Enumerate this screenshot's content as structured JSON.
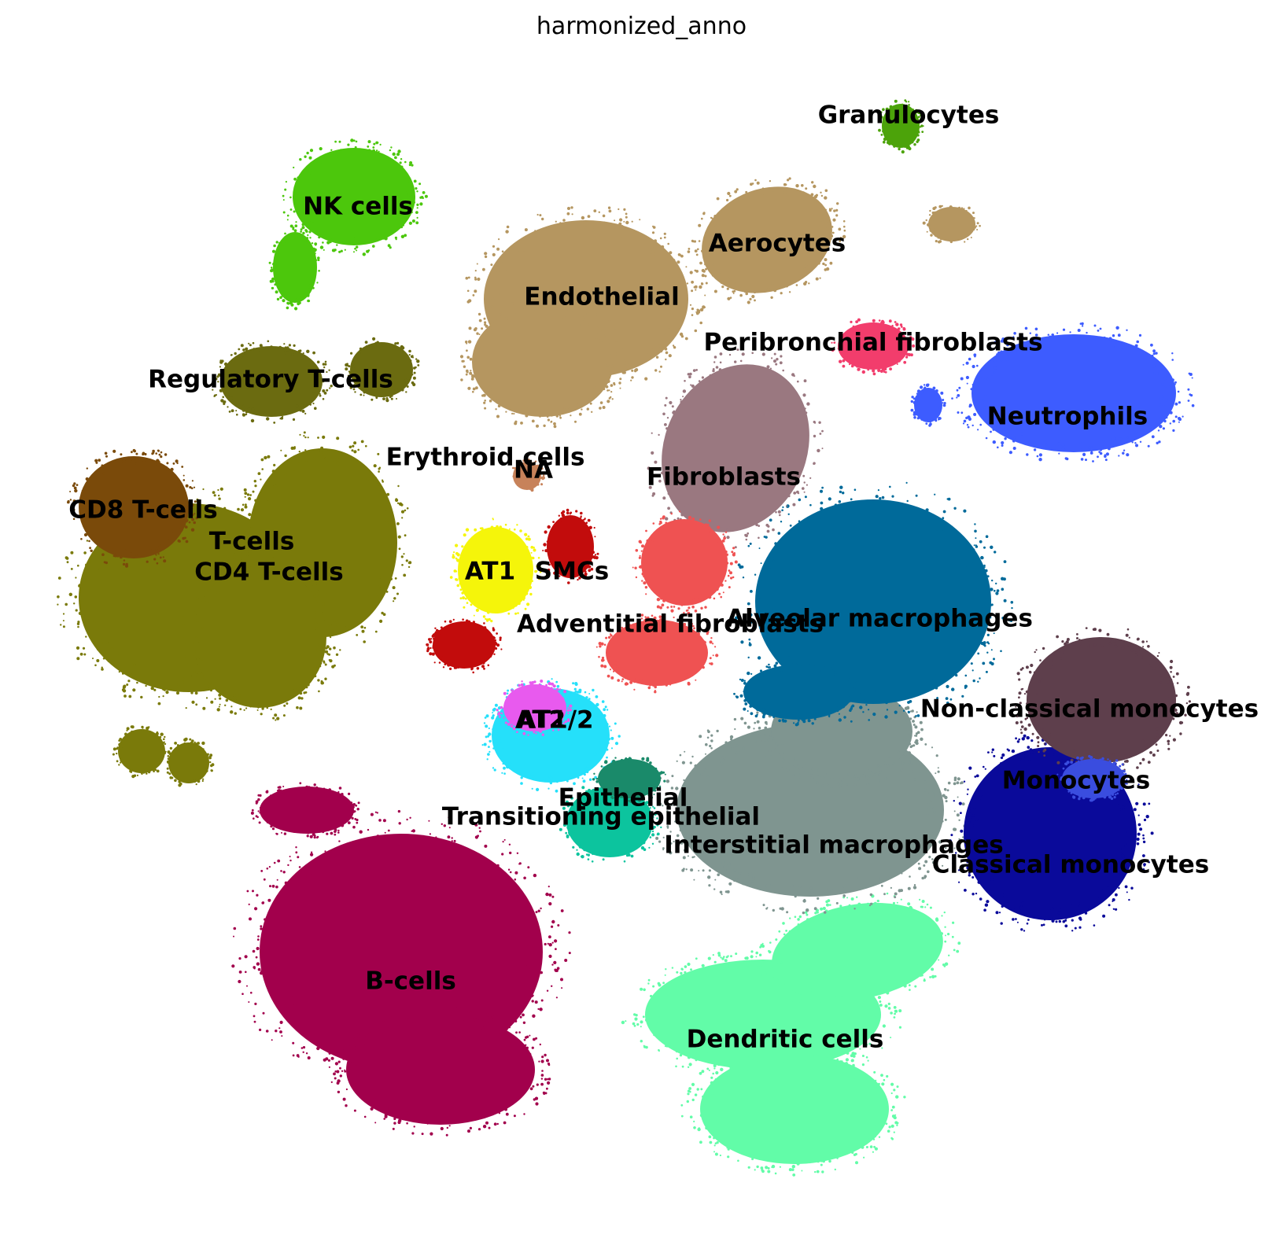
{
  "chart_data": {
    "type": "scatter",
    "title": "harmonized_anno",
    "xlabel": "",
    "ylabel": "",
    "axes_visible": false,
    "grid": false,
    "legend": "on data",
    "clusters": [
      {
        "label": "Granulocytes",
        "color": "#4ca30a"
      },
      {
        "label": "NK cells",
        "color": "#4cc70c"
      },
      {
        "label": "Aerocytes",
        "color": "#b59660"
      },
      {
        "label": "Endothelial",
        "color": "#b59660"
      },
      {
        "label": "Peribronchial fibroblasts",
        "color": "#f23d6c"
      },
      {
        "label": "Neutrophils",
        "color": "#3d5cff"
      },
      {
        "label": "Regulatory T-cells",
        "color": "#6b6b10"
      },
      {
        "label": "Erythroid cells",
        "color": "#b58a62"
      },
      {
        "label": "NA",
        "color": "#c7825a"
      },
      {
        "label": "Fibroblasts",
        "color": "#9a7880"
      },
      {
        "label": "CD8 T-cells",
        "color": "#7a4a0a"
      },
      {
        "label": "T-cells",
        "color": "#7a7a0a"
      },
      {
        "label": "CD4 T-cells",
        "color": "#7a7a0a"
      },
      {
        "label": "AT1",
        "color": "#f5f50a"
      },
      {
        "label": "SMCs",
        "color": "#c20c0c"
      },
      {
        "label": "Adventitial fibroblasts",
        "color": "#ef5252"
      },
      {
        "label": "Alveolar macrophages",
        "color": "#006a9a"
      },
      {
        "label": "Non-classical monocytes",
        "color": "#5e3f4c"
      },
      {
        "label": "AT2",
        "color": "#25e0fa"
      },
      {
        "label": "AT1/2",
        "color": "#e85aee"
      },
      {
        "label": "Monocytes",
        "color": "#3a4ddf"
      },
      {
        "label": "Epithelial",
        "color": "#0cc49e"
      },
      {
        "label": "Transitioning epithelial",
        "color": "#1a8a6a"
      },
      {
        "label": "Interstitial macrophages",
        "color": "#7f9590"
      },
      {
        "label": "Classical monocytes",
        "color": "#0a0a9a"
      },
      {
        "label": "B-cells",
        "color": "#a2004c"
      },
      {
        "label": "Dendritic cells",
        "color": "#62fca8"
      }
    ]
  }
}
